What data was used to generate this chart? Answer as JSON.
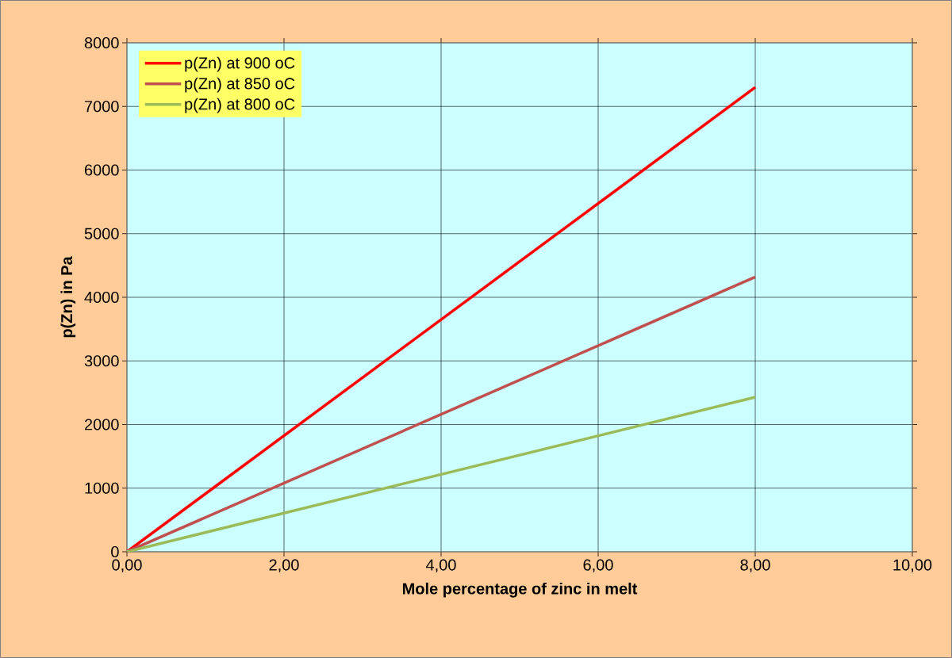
{
  "chart_data": {
    "type": "line",
    "xlabel": "Mole percentage of zinc in melt",
    "ylabel": "p(Zn) in Pa",
    "x": [
      0,
      8
    ],
    "series": [
      {
        "name": "p(Zn) at 900 oC",
        "color": "#ff0000",
        "values": [
          0,
          7300
        ]
      },
      {
        "name": "p(Zn) at 850 oC",
        "color": "#c0504d",
        "values": [
          0,
          4320
        ]
      },
      {
        "name": "p(Zn) at 800 oC",
        "color": "#9bbb59",
        "values": [
          0,
          2430
        ]
      }
    ],
    "xlim": [
      0,
      10
    ],
    "ylim": [
      0,
      8000
    ],
    "xticks": [
      {
        "value": 0,
        "label": "0,00"
      },
      {
        "value": 2,
        "label": "2,00"
      },
      {
        "value": 4,
        "label": "4,00"
      },
      {
        "value": 6,
        "label": "6,00"
      },
      {
        "value": 8,
        "label": "8,00"
      },
      {
        "value": 10,
        "label": "10,00"
      }
    ],
    "yticks": [
      0,
      1000,
      2000,
      3000,
      4000,
      5000,
      6000,
      7000,
      8000
    ],
    "grid": true,
    "legend": "top left",
    "marker": "none",
    "line_style": "solid"
  }
}
